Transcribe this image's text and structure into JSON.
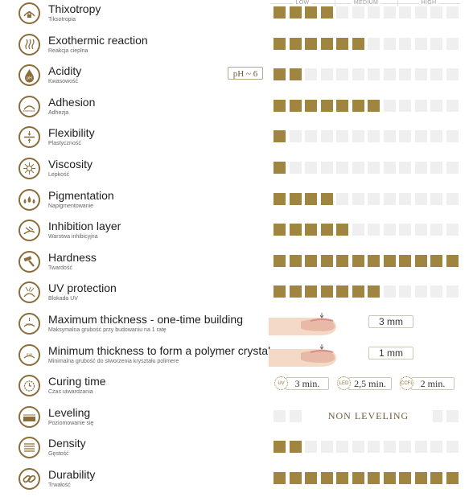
{
  "scale_header": {
    "low": "LOW",
    "medium": "MEDIUM",
    "high": "HIGH"
  },
  "colors": {
    "accent": "#a08540",
    "empty": "#efefef",
    "icon_border": "#8a6d3b"
  },
  "rows": [
    {
      "icon": "thixotropy-icon",
      "title": "Thixotropy",
      "subtitle": "Tiksotropia",
      "level": 4
    },
    {
      "icon": "heat-waves-icon",
      "title": "Exothermic reaction",
      "subtitle": "Reakcja cieplna",
      "level": 6
    },
    {
      "icon": "ph-drop-icon",
      "title": "Acidity",
      "subtitle": "Kwasowość",
      "level": 2,
      "badge": "pH ~ 6"
    },
    {
      "icon": "adhesion-icon",
      "title": "Adhesion",
      "subtitle": "Adhezja",
      "level": 7
    },
    {
      "icon": "flexibility-icon",
      "title": "Flexibility",
      "subtitle": "Plastyczność",
      "level": 1
    },
    {
      "icon": "viscosity-icon",
      "title": "Viscosity",
      "subtitle": "Lepkość",
      "level": 1
    },
    {
      "icon": "pigment-drops-icon",
      "title": "Pigmentation",
      "subtitle": "Napigmentowanie",
      "level": 4
    },
    {
      "icon": "inhibition-layer-icon",
      "title": "Inhibition layer",
      "subtitle": "Warstwa inhibicyjna",
      "level": 5
    },
    {
      "icon": "hammer-icon",
      "title": "Hardness",
      "subtitle": "Twardość",
      "level": 12
    },
    {
      "icon": "uv-protection-icon",
      "title": "UV protection",
      "subtitle": "Blokada UV",
      "level": 7
    },
    {
      "icon": "max-thickness-icon",
      "title": "Maximum thickness - one-time building",
      "subtitle": "Maksymalna grubość przy budowaniu na 1 ratę",
      "value": "3 mm"
    },
    {
      "icon": "min-thickness-icon",
      "title": "Minimum thickness to form a polymer crystal",
      "subtitle": "Minimalna grubość do stworzenia kryształu polimere",
      "value": "1 mm"
    },
    {
      "icon": "curing-time-icon",
      "title": "Curing time",
      "subtitle": "Czas utwardzania",
      "cure": [
        {
          "lamp": "UV",
          "time": "3 min."
        },
        {
          "lamp": "LED",
          "time": "2,5 min."
        },
        {
          "lamp": "CCFL",
          "time": "2 min."
        }
      ]
    },
    {
      "icon": "leveling-icon",
      "title": "Leveling",
      "subtitle": "Poziomowanie się",
      "text": "NON LEVELING"
    },
    {
      "icon": "density-icon",
      "title": "Density",
      "subtitle": "Gęstość",
      "level": 2
    },
    {
      "icon": "chain-link-icon",
      "title": "Durability",
      "subtitle": "Trwałość",
      "level": 12
    }
  ]
}
